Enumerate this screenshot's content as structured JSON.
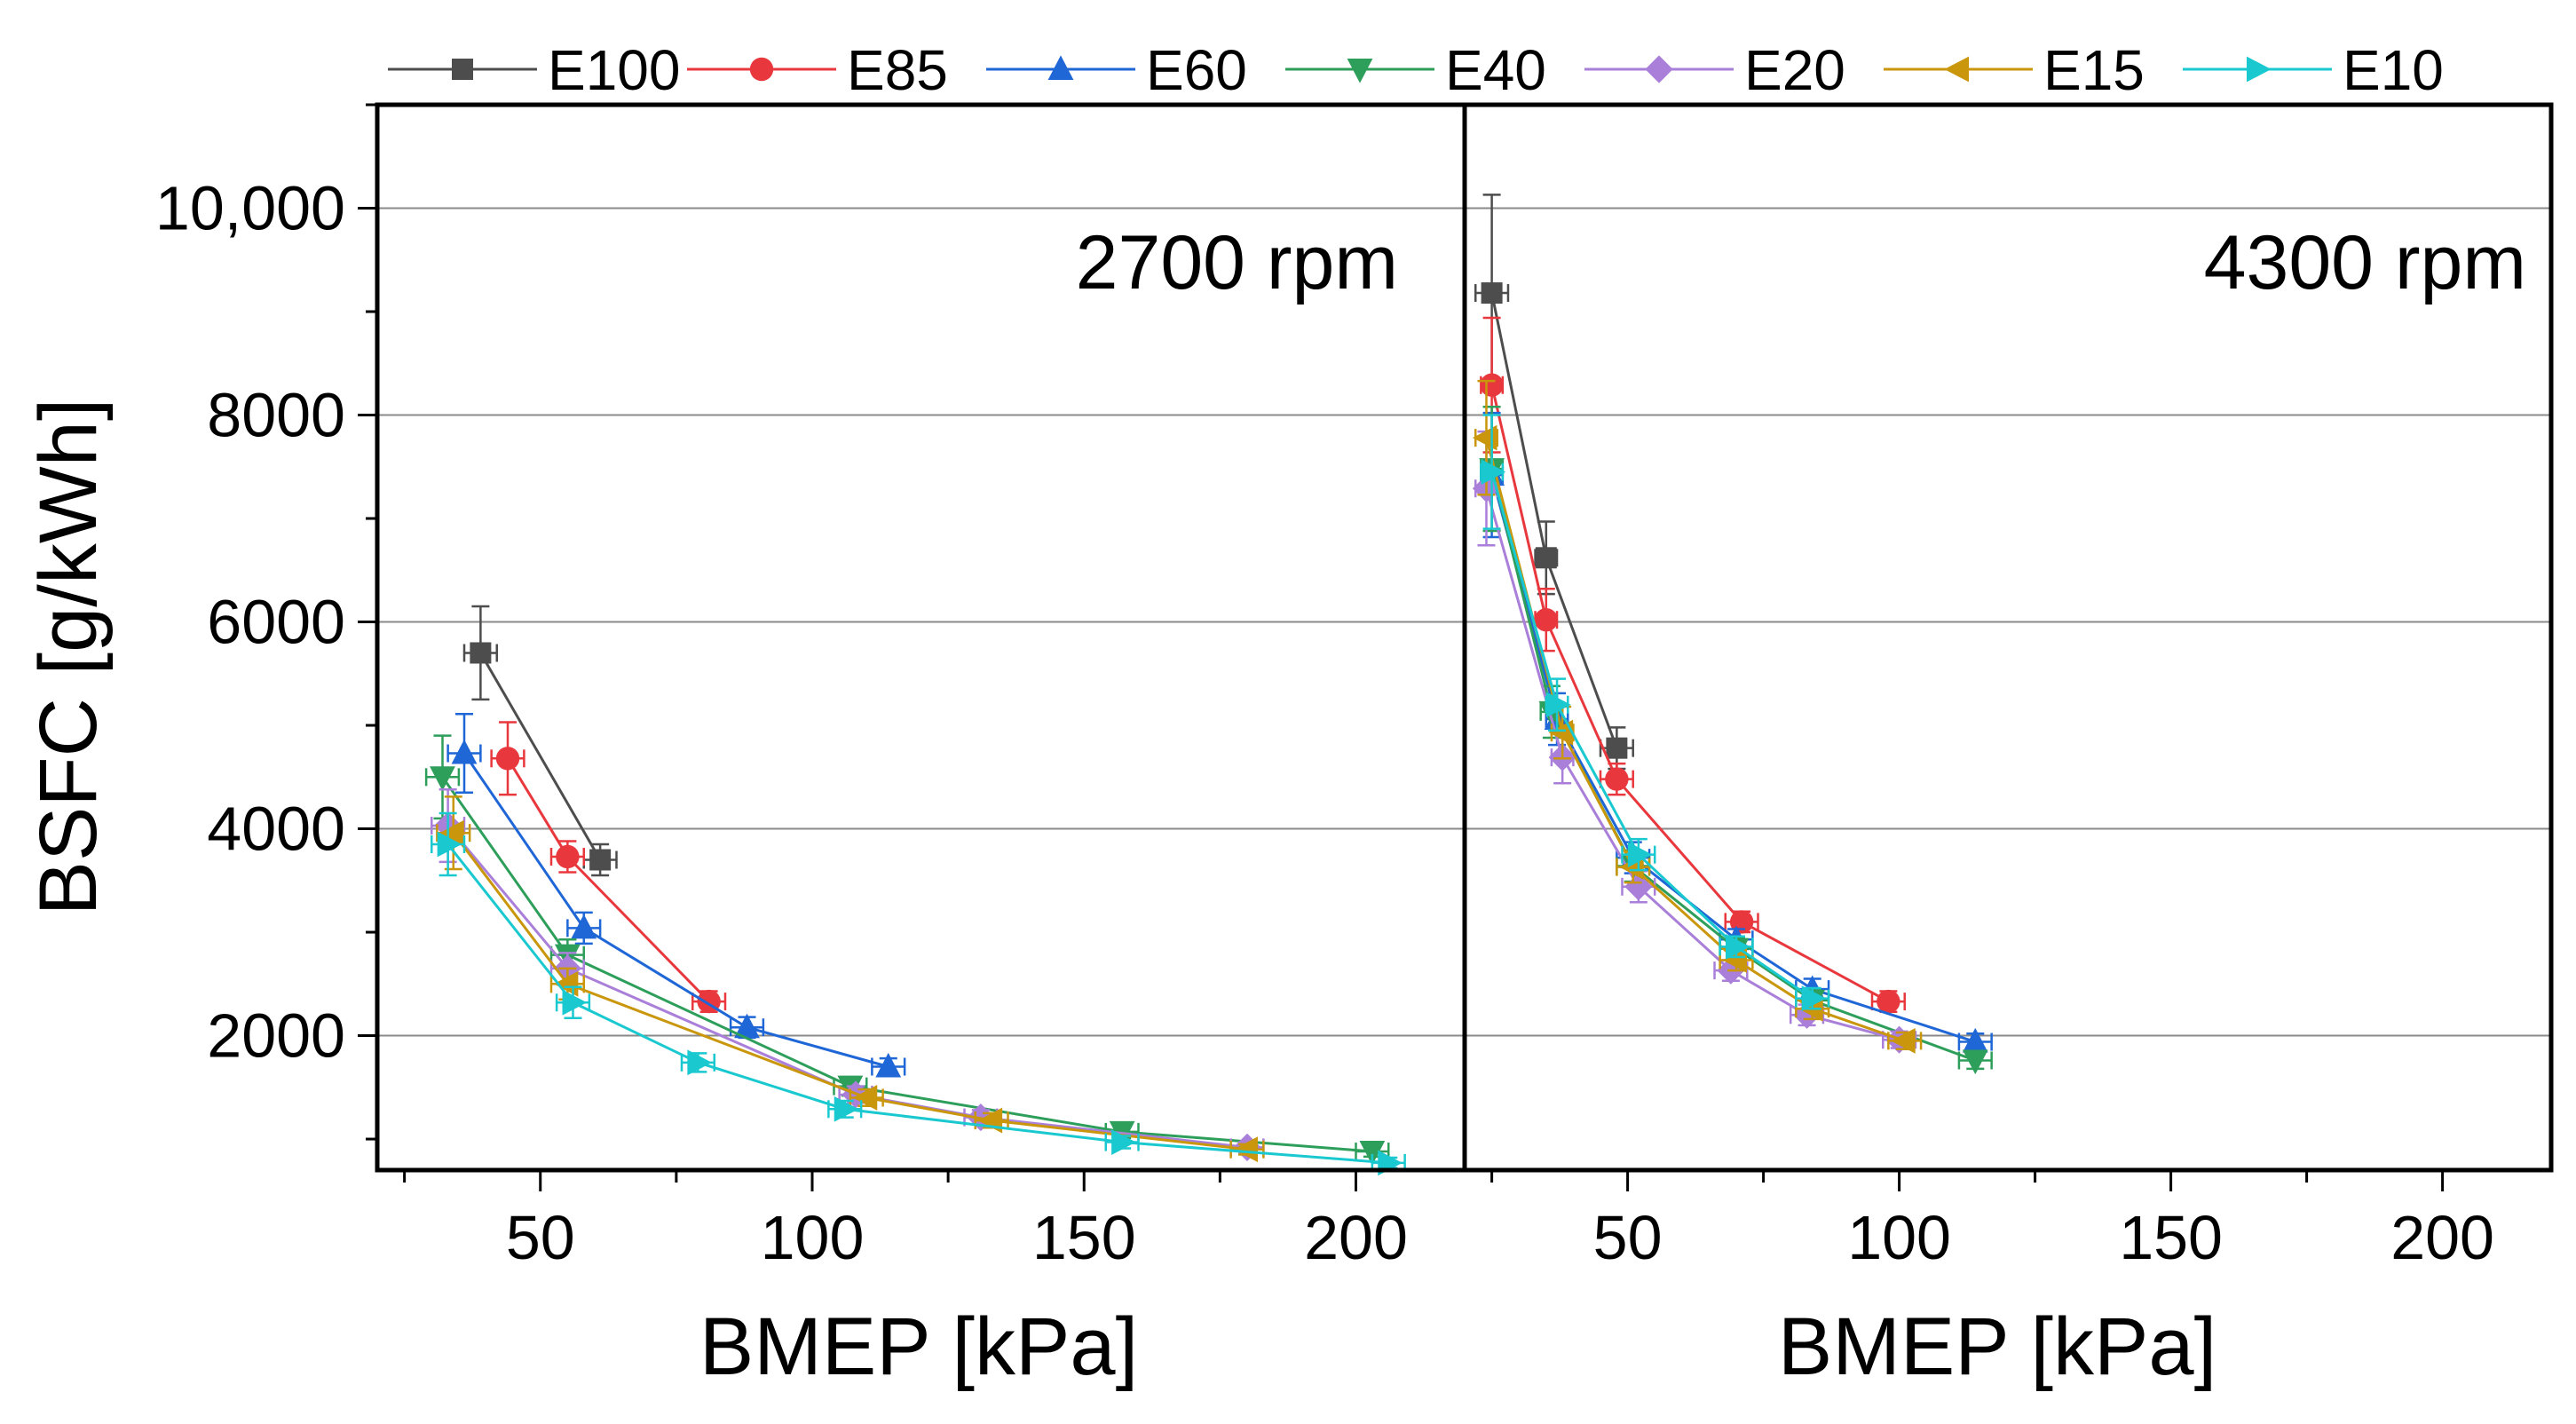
{
  "chart_data": {
    "type": "line",
    "ylabel": "BSFC [g/kWh]",
    "xlabel": "BMEP [kPa]",
    "ylim": [
      700,
      11000
    ],
    "yticks": [
      2000,
      4000,
      6000,
      8000,
      10000
    ],
    "ytick_labels": [
      "2000",
      "4000",
      "6000",
      "8000",
      "10,000"
    ],
    "xlim": [
      20,
      220
    ],
    "xticks": [
      50,
      100,
      150,
      200
    ],
    "xtick_labels": [
      "50",
      "100",
      "150",
      "200"
    ],
    "legend": [
      "E100",
      "E85",
      "E60",
      "E40",
      "E20",
      "E15",
      "E10"
    ],
    "series_style": [
      {
        "name": "E100",
        "color": "#4d4d4d",
        "marker": "square"
      },
      {
        "name": "E85",
        "color": "#e8383d",
        "marker": "circle"
      },
      {
        "name": "E60",
        "color": "#1f66d6",
        "marker": "triangle-up"
      },
      {
        "name": "E40",
        "color": "#2e9e5b",
        "marker": "triangle-down"
      },
      {
        "name": "E20",
        "color": "#a97fd9",
        "marker": "diamond"
      },
      {
        "name": "E15",
        "color": "#c9960c",
        "marker": "triangle-left"
      },
      {
        "name": "E10",
        "color": "#1ac8d0",
        "marker": "triangle-right"
      }
    ],
    "panels": [
      {
        "label": "2700 rpm",
        "series": [
          {
            "name": "E100",
            "x": [
              39,
              61
            ],
            "y": [
              5700,
              3700
            ],
            "yerr": [
              450,
              150
            ],
            "xerr": [
              3,
              3
            ]
          },
          {
            "name": "E85",
            "x": [
              44,
              55,
              81
            ],
            "y": [
              4680,
              3730,
              2330
            ],
            "yerr": [
              350,
              150,
              100
            ],
            "xerr": [
              3,
              3,
              3
            ]
          },
          {
            "name": "E60",
            "x": [
              36,
              58,
              88,
              114
            ],
            "y": [
              4730,
              3040,
              2080,
              1700
            ],
            "yerr": [
              380,
              150,
              100,
              80
            ],
            "xerr": [
              3,
              3,
              3,
              3
            ]
          },
          {
            "name": "E40",
            "x": [
              32,
              55,
              107,
              157,
              203
            ],
            "y": [
              4500,
              2780,
              1510,
              1070,
              880
            ],
            "yerr": [
              400,
              150,
              90,
              60,
              50
            ],
            "xerr": [
              3,
              3,
              3,
              3,
              3
            ]
          },
          {
            "name": "E20",
            "x": [
              33,
              55,
              108,
              131,
              180
            ],
            "y": [
              4030,
              2650,
              1430,
              1210,
              920
            ],
            "yerr": [
              350,
              150,
              80,
              70,
              50
            ],
            "xerr": [
              3,
              3,
              3,
              3,
              3
            ]
          },
          {
            "name": "E15",
            "x": [
              34,
              55,
              110,
              133,
              180
            ],
            "y": [
              3960,
              2500,
              1400,
              1180,
              900
            ],
            "yerr": [
              350,
              150,
              80,
              70,
              50
            ],
            "xerr": [
              3,
              3,
              3,
              3,
              3
            ]
          },
          {
            "name": "E10",
            "x": [
              33,
              56,
              79,
              106,
              157,
              206
            ],
            "y": [
              3850,
              2320,
              1740,
              1290,
              970,
              770
            ],
            "yerr": [
              300,
              150,
              90,
              80,
              60,
              50
            ],
            "xerr": [
              3,
              3,
              3,
              3,
              3,
              3
            ]
          }
        ]
      },
      {
        "label": "4300 rpm",
        "series": [
          {
            "name": "E100",
            "x": [
              25,
              35,
              48
            ],
            "y": [
              9180,
              6620,
              4780
            ],
            "yerr": [
              950,
              350,
              200
            ],
            "xerr": [
              3,
              2,
              3
            ]
          },
          {
            "name": "E85",
            "x": [
              25,
              35,
              48,
              71,
              98
            ],
            "y": [
              8290,
              6020,
              4480,
              3100,
              2330
            ],
            "yerr": [
              650,
              300,
              150,
              100,
              100
            ],
            "xerr": [
              2,
              2,
              3,
              3,
              3
            ]
          },
          {
            "name": "E60",
            "x": [
              25,
              37,
              51,
              70,
              84,
              114
            ],
            "y": [
              7420,
              5060,
              3720,
              2930,
              2450,
              1940
            ],
            "yerr": [
              600,
              250,
              150,
              100,
              100,
              80
            ],
            "xerr": [
              2,
              2,
              3,
              3,
              3,
              3
            ]
          },
          {
            "name": "E40",
            "x": [
              25,
              36,
              51,
              70,
              84,
              114
            ],
            "y": [
              7480,
              5130,
              3640,
              2840,
              2340,
              1760
            ],
            "yerr": [
              600,
              250,
              150,
              100,
              100,
              80
            ],
            "xerr": [
              2,
              2,
              3,
              3,
              3,
              3
            ]
          },
          {
            "name": "E20",
            "x": [
              24,
              38,
              52,
              69,
              83,
              100
            ],
            "y": [
              7290,
              4690,
              3440,
              2630,
              2200,
              1960
            ],
            "yerr": [
              550,
              250,
              150,
              100,
              100,
              80
            ],
            "xerr": [
              2,
              2,
              3,
              3,
              3,
              3
            ]
          },
          {
            "name": "E15",
            "x": [
              24,
              38,
              51,
              70,
              84,
              101
            ],
            "y": [
              7780,
              4930,
              3630,
              2730,
              2260,
              1950
            ],
            "yerr": [
              550,
              250,
              150,
              100,
              100,
              80
            ],
            "xerr": [
              2,
              2,
              3,
              3,
              3,
              3
            ]
          },
          {
            "name": "E10",
            "x": [
              25,
              37,
              52,
              70,
              84
            ],
            "y": [
              7450,
              5200,
              3750,
              2860,
              2360
            ],
            "yerr": [
              550,
              250,
              150,
              100,
              100
            ],
            "xerr": [
              2,
              2,
              3,
              3,
              3
            ]
          }
        ]
      }
    ]
  }
}
